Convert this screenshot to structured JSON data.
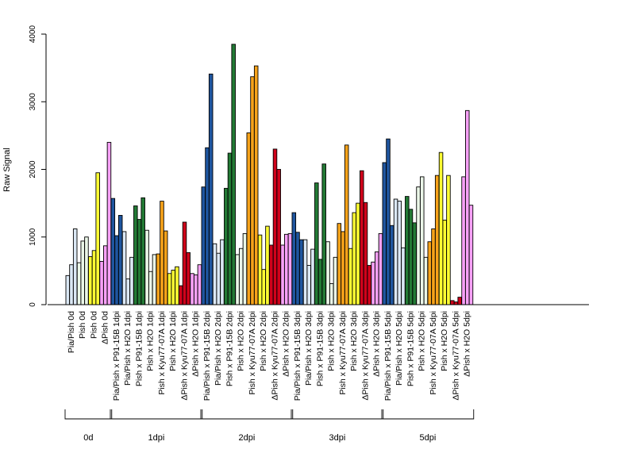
{
  "chart_data": {
    "type": "bar",
    "ylabel": "Raw Signal",
    "ylim": [
      0,
      4000
    ],
    "yticks": [
      0,
      1000,
      2000,
      3000,
      4000
    ],
    "colors": {
      "light_blue": "#dbe8f5",
      "dark_blue": "#1f56a0",
      "light_green": "#ebf7e8",
      "dark_green": "#237a35",
      "orange": "#f7a31a",
      "yellow": "#ffff33",
      "red": "#d0021b",
      "pink": "#f7a1f7"
    },
    "categories": [
      {
        "label": "Pia/Pish 0d",
        "values": [
          430,
          590,
          1120
        ],
        "colors": [
          "light_blue",
          "light_blue",
          "light_blue"
        ]
      },
      {
        "label": "Pish 0d",
        "values": [
          620,
          940,
          1000
        ],
        "colors": [
          "light_green",
          "light_green",
          "light_green"
        ]
      },
      {
        "label": "Pish 0d",
        "values": [
          710,
          800,
          1950
        ],
        "colors": [
          "yellow",
          "yellow",
          "yellow"
        ]
      },
      {
        "label": "ΔPish 0d",
        "values": [
          640,
          870,
          2400
        ],
        "colors": [
          "pink",
          "pink",
          "pink"
        ]
      },
      {
        "label": "Pia/Pish x P91-15B 1dpi",
        "values": [
          1570,
          1020,
          1320
        ],
        "colors": [
          "dark_blue",
          "dark_blue",
          "dark_blue"
        ]
      },
      {
        "label": "Pia/Pish x H2O 1dpi",
        "values": [
          1080,
          380,
          700
        ],
        "colors": [
          "light_blue",
          "light_blue",
          "light_blue"
        ]
      },
      {
        "label": "Pish x P91-15B 1dpi",
        "values": [
          1460,
          1260,
          1580
        ],
        "colors": [
          "dark_green",
          "dark_green",
          "dark_green"
        ]
      },
      {
        "label": "Pish x H2O 1dpi",
        "values": [
          1100,
          490,
          740
        ],
        "colors": [
          "light_green",
          "light_green",
          "light_green"
        ]
      },
      {
        "label": "Pish x Kyu77-07A 1dpi",
        "values": [
          750,
          1530,
          1090
        ],
        "colors": [
          "orange",
          "orange",
          "orange"
        ]
      },
      {
        "label": "Pish x H2O 1dpi",
        "values": [
          460,
          510,
          560
        ],
        "colors": [
          "yellow",
          "yellow",
          "yellow"
        ]
      },
      {
        "label": "ΔPish x Kyu77-07A 1dpi",
        "values": [
          280,
          1220,
          770
        ],
        "colors": [
          "red",
          "red",
          "red"
        ]
      },
      {
        "label": "ΔPish x H2O 1dpi",
        "values": [
          460,
          440,
          590
        ],
        "colors": [
          "pink",
          "pink",
          "pink"
        ]
      },
      {
        "label": "Pia/Pish x P91-15B 2dpi",
        "values": [
          1740,
          2320,
          3410
        ],
        "colors": [
          "dark_blue",
          "dark_blue",
          "dark_blue"
        ]
      },
      {
        "label": "Pia/Pish x H2O 2dpi",
        "values": [
          900,
          760,
          960
        ],
        "colors": [
          "light_blue",
          "light_blue",
          "light_blue"
        ]
      },
      {
        "label": "Pish x P91-15B 2dpi",
        "values": [
          1720,
          2240,
          3850
        ],
        "colors": [
          "dark_green",
          "dark_green",
          "dark_green"
        ]
      },
      {
        "label": "Pish x H2O 2dpi",
        "values": [
          740,
          830,
          1050
        ],
        "colors": [
          "light_green",
          "light_green",
          "light_green"
        ]
      },
      {
        "label": "Pish x Kyu77-07A 2dpi",
        "values": [
          2540,
          3370,
          3530
        ],
        "colors": [
          "orange",
          "orange",
          "orange"
        ]
      },
      {
        "label": "Pish x H2O 2dpi",
        "values": [
          1030,
          520,
          1160
        ],
        "colors": [
          "yellow",
          "yellow",
          "yellow"
        ]
      },
      {
        "label": "ΔPish x Kyu77-07A 2dpi",
        "values": [
          880,
          2300,
          2000
        ],
        "colors": [
          "red",
          "red",
          "red"
        ]
      },
      {
        "label": "ΔPish x H2O 2dpi",
        "values": [
          880,
          1040,
          1050
        ],
        "colors": [
          "pink",
          "pink",
          "pink"
        ]
      },
      {
        "label": "Pia/Pish x P91-15B 3dpi",
        "values": [
          1360,
          1070,
          960
        ],
        "colors": [
          "dark_blue",
          "dark_blue",
          "dark_blue"
        ]
      },
      {
        "label": "Pia/Pish x H2O 3dpi",
        "values": [
          960,
          580,
          820
        ],
        "colors": [
          "light_blue",
          "light_blue",
          "light_blue"
        ]
      },
      {
        "label": "Pish x P91-15B 3dpi",
        "values": [
          1800,
          670,
          2080
        ],
        "colors": [
          "dark_green",
          "dark_green",
          "dark_green"
        ]
      },
      {
        "label": "Pish x H2O 3dpi",
        "values": [
          930,
          310,
          700
        ],
        "colors": [
          "light_green",
          "light_green",
          "light_green"
        ]
      },
      {
        "label": "Pish x Kyu77-07A 3dpi",
        "values": [
          1200,
          1080,
          2360
        ],
        "colors": [
          "orange",
          "orange",
          "orange"
        ]
      },
      {
        "label": "Pish x H2O 3dpi",
        "values": [
          830,
          1360,
          1500
        ],
        "colors": [
          "yellow",
          "yellow",
          "yellow"
        ]
      },
      {
        "label": "ΔPish x Kyu77-07A 3dpi",
        "values": [
          1980,
          1510,
          580
        ],
        "colors": [
          "red",
          "red",
          "red"
        ]
      },
      {
        "label": "ΔPish x H2O 3dpi",
        "values": [
          630,
          780,
          1050
        ],
        "colors": [
          "pink",
          "pink",
          "pink"
        ]
      },
      {
        "label": "Pia/Pish x P91-15B 5dpi",
        "values": [
          2100,
          2450,
          1170
        ],
        "colors": [
          "dark_blue",
          "dark_blue",
          "dark_blue"
        ]
      },
      {
        "label": "Pia/Pish x H2O 5dpi",
        "values": [
          1560,
          1530,
          840
        ],
        "colors": [
          "light_blue",
          "light_blue",
          "light_blue"
        ]
      },
      {
        "label": "Pish x P91-15B 5dpi",
        "values": [
          1600,
          1410,
          1210
        ],
        "colors": [
          "dark_green",
          "dark_green",
          "dark_green"
        ]
      },
      {
        "label": "Pish x H2O 5dpi",
        "values": [
          1740,
          1890,
          700
        ],
        "colors": [
          "light_green",
          "light_green",
          "light_green"
        ]
      },
      {
        "label": "Pish x Kyu77-07A 5dpi",
        "values": [
          930,
          1120,
          1910
        ],
        "colors": [
          "orange",
          "orange",
          "orange"
        ]
      },
      {
        "label": "Pish x H2O 5dpi",
        "values": [
          2250,
          1250,
          1910
        ],
        "colors": [
          "yellow",
          "yellow",
          "yellow"
        ]
      },
      {
        "label": "ΔPish x Kyu77-07A 5dpi",
        "values": [
          60,
          40,
          110
        ],
        "colors": [
          "red",
          "red",
          "red"
        ]
      },
      {
        "label": "ΔPish x H2O 5dpi",
        "values": [
          1890,
          2870,
          1470
        ],
        "colors": [
          "pink",
          "pink",
          "pink"
        ]
      }
    ],
    "groups": [
      {
        "label": "0d",
        "start": 0,
        "end": 3
      },
      {
        "label": "1dpi",
        "start": 4,
        "end": 11
      },
      {
        "label": "2dpi",
        "start": 12,
        "end": 19
      },
      {
        "label": "3dpi",
        "start": 20,
        "end": 27
      },
      {
        "label": "5dpi",
        "start": 28,
        "end": 35
      }
    ]
  }
}
